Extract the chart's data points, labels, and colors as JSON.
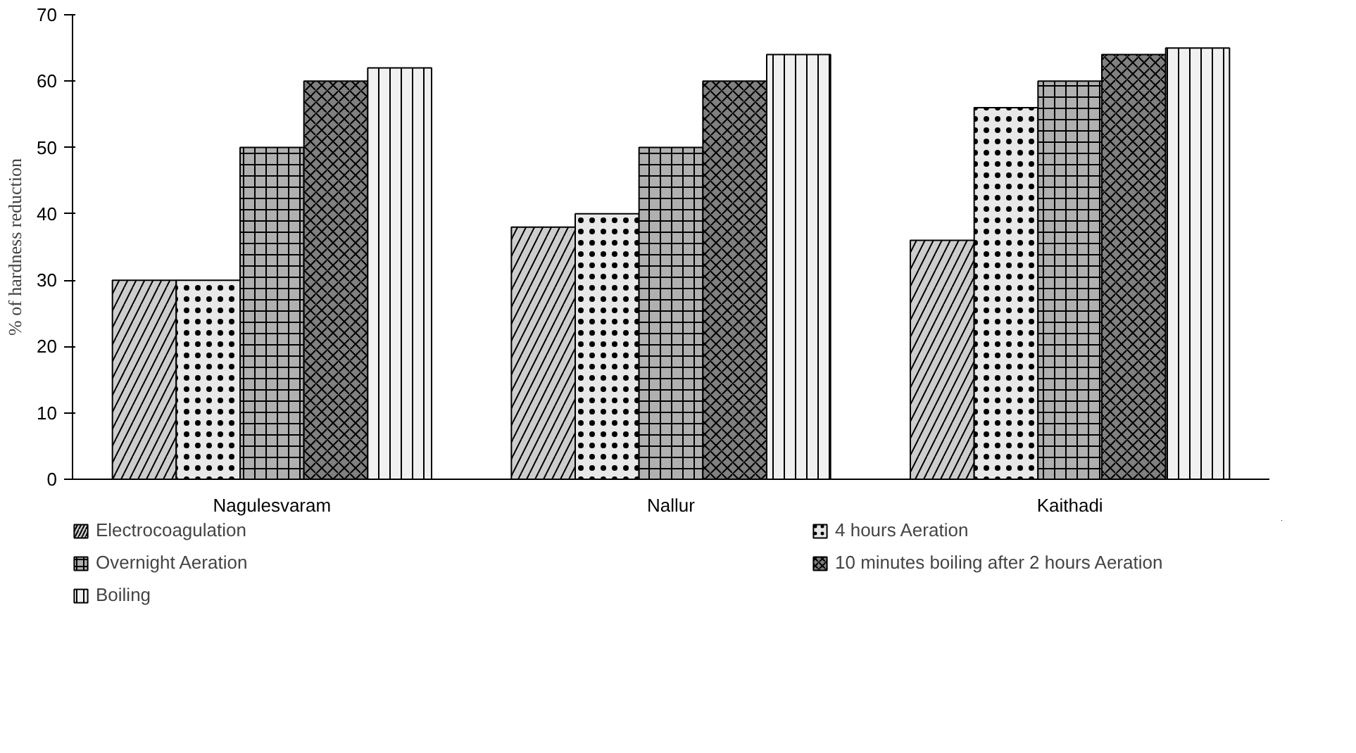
{
  "chart_data": {
    "type": "bar",
    "ylabel": "% of hardness reduction",
    "categories": [
      "Nagulesvaram",
      "Nallur",
      "Kaithadi"
    ],
    "series": [
      {
        "name": "Electrocoagulation",
        "color": "#cdcdcd",
        "values": [
          30,
          38,
          36
        ]
      },
      {
        "name": "4 hours Aeration",
        "color": "#e8e8e8",
        "values": [
          30,
          40,
          56
        ]
      },
      {
        "name": "Overnight Aeration",
        "color": "#b0b0b0",
        "values": [
          50,
          50,
          60
        ]
      },
      {
        "name": "10 minutes boiling after 2 hours Aeration",
        "color": "#808080",
        "values": [
          60,
          60,
          64
        ]
      },
      {
        "name": "Boiling",
        "color": "#f0f0f0",
        "values": [
          62,
          64,
          65
        ]
      }
    ],
    "ylim": [
      0,
      70
    ],
    "yticks": [
      0,
      10,
      20,
      30,
      40,
      50,
      60,
      70
    ],
    "grid": false,
    "legend": "bottom"
  }
}
